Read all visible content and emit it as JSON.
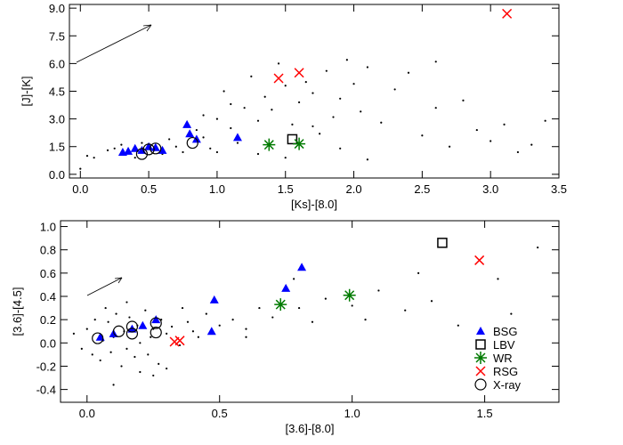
{
  "chart_data": [
    {
      "type": "scatter",
      "xlabel": "[Ks]-[8.0]",
      "ylabel": "[J]-[K]",
      "xlim": [
        -0.08,
        3.5
      ],
      "ylim": [
        -0.2,
        9.2
      ],
      "xticks": [
        {
          "value": 0,
          "label": "0.0"
        },
        0.5,
        {
          "value": 1,
          "label": "1.0"
        },
        1.5,
        {
          "value": 2,
          "label": "2.0"
        },
        2.5,
        {
          "value": 3,
          "label": "3.0"
        },
        3.5
      ],
      "yticks": [
        {
          "value": 0,
          "label": "0.0"
        },
        1.5,
        {
          "value": 3,
          "label": "3.0"
        },
        4.5,
        {
          "value": 6,
          "label": "6.0"
        },
        7.5,
        {
          "value": 9,
          "label": "9.0"
        }
      ],
      "field": {
        "color": "#000000",
        "x": [
          0.0,
          0.05,
          0.1,
          0.2,
          0.25,
          0.3,
          0.4,
          0.45,
          0.6,
          0.65,
          0.7,
          0.75,
          0.85,
          0.9,
          0.95,
          1.0,
          1.05,
          1.1,
          1.2,
          1.25,
          1.3,
          1.35,
          1.4,
          1.45,
          1.5,
          1.55,
          1.6,
          1.65,
          1.7,
          1.75,
          1.8,
          1.85,
          1.9,
          1.95,
          2.0,
          2.05,
          2.1,
          2.2,
          2.3,
          2.4,
          2.5,
          2.6,
          2.7,
          2.8,
          2.9,
          3.0,
          3.1,
          3.2,
          3.3,
          3.4,
          1.15,
          1.3,
          1.5,
          1.7,
          1.9,
          2.1,
          0.9,
          1.1,
          2.6,
          1.0
        ],
        "y": [
          0.3,
          1.0,
          0.9,
          1.3,
          1.4,
          1.6,
          0.9,
          1.7,
          1.1,
          1.9,
          1.5,
          1.2,
          2.4,
          3.2,
          1.4,
          3.0,
          4.5,
          2.5,
          3.6,
          5.3,
          2.9,
          4.2,
          3.5,
          6.0,
          4.8,
          2.7,
          3.9,
          5.0,
          4.4,
          2.2,
          5.6,
          3.1,
          4.1,
          6.2,
          4.9,
          3.4,
          5.8,
          2.8,
          4.6,
          5.5,
          2.1,
          3.6,
          1.5,
          4.0,
          2.4,
          1.8,
          2.7,
          1.2,
          1.6,
          2.9,
          1.7,
          1.1,
          0.9,
          2.6,
          1.4,
          0.8,
          2.0,
          3.8,
          6.1,
          1.2
        ]
      },
      "series": [
        {
          "name": "BSG",
          "marker": "triangle",
          "color": "#0000ff",
          "x": [
            0.31,
            0.35,
            0.4,
            0.45,
            0.5,
            0.55,
            0.6,
            0.78,
            0.8,
            0.85,
            1.15
          ],
          "y": [
            1.2,
            1.25,
            1.4,
            1.3,
            1.5,
            1.45,
            1.3,
            2.7,
            2.2,
            1.9,
            2.0
          ]
        },
        {
          "name": "LBV",
          "marker": "square",
          "color": "#000000",
          "x": [
            1.55
          ],
          "y": [
            1.9
          ]
        },
        {
          "name": "WR",
          "marker": "asterisk",
          "color": "#007a00",
          "x": [
            1.38,
            1.6
          ],
          "y": [
            1.6,
            1.65
          ]
        },
        {
          "name": "RSG",
          "marker": "x",
          "color": "#ff0000",
          "x": [
            1.45,
            1.6,
            3.12
          ],
          "y": [
            5.2,
            5.5,
            8.7
          ]
        },
        {
          "name": "X-ray",
          "marker": "circle",
          "color": "#000000",
          "x": [
            0.45,
            0.5,
            0.55,
            0.82
          ],
          "y": [
            1.1,
            1.35,
            1.4,
            1.7
          ]
        }
      ]
    },
    {
      "type": "scatter",
      "xlabel": "[3.6]-[8.0]",
      "ylabel": "[3.6]-[4.5]",
      "xlim": [
        -0.1,
        1.78
      ],
      "ylim": [
        -0.51,
        1.05
      ],
      "xticks": [
        {
          "value": 0,
          "label": "0.0"
        },
        0.5,
        {
          "value": 1,
          "label": "1.0"
        },
        1.5
      ],
      "yticks": [
        -0.4,
        -0.2,
        {
          "value": 0,
          "label": "0.0"
        },
        0.2,
        0.4,
        0.6,
        0.8,
        {
          "value": 1,
          "label": "1.0"
        }
      ],
      "legend": "lower right",
      "field": {
        "color": "#000000",
        "x": [
          -0.05,
          -0.02,
          0.0,
          0.02,
          0.03,
          0.05,
          0.06,
          0.08,
          0.09,
          0.1,
          0.11,
          0.13,
          0.14,
          0.15,
          0.16,
          0.18,
          0.19,
          0.2,
          0.22,
          0.23,
          0.24,
          0.25,
          0.27,
          0.28,
          0.3,
          0.32,
          0.35,
          0.38,
          0.4,
          0.42,
          0.45,
          0.5,
          0.55,
          0.6,
          0.65,
          0.7,
          0.8,
          0.85,
          0.9,
          1.0,
          1.05,
          1.1,
          1.2,
          1.3,
          1.4,
          1.55,
          1.6,
          1.7,
          0.1,
          0.2,
          0.3,
          0.07,
          0.15,
          0.25,
          0.36,
          0.6,
          0.78,
          1.25
        ],
        "y": [
          0.08,
          -0.05,
          0.12,
          -0.1,
          0.2,
          -0.15,
          0.02,
          0.18,
          -0.08,
          0.05,
          0.25,
          -0.2,
          0.1,
          -0.05,
          0.22,
          -0.12,
          0.15,
          0.0,
          0.28,
          -0.1,
          0.05,
          0.12,
          -0.18,
          0.2,
          0.08,
          0.14,
          -0.02,
          0.18,
          0.1,
          0.05,
          0.25,
          0.15,
          0.2,
          0.12,
          0.3,
          0.22,
          0.3,
          0.18,
          0.38,
          0.32,
          0.2,
          0.45,
          0.28,
          0.36,
          0.15,
          0.55,
          0.25,
          0.82,
          -0.36,
          -0.25,
          -0.22,
          0.3,
          0.35,
          -0.28,
          0.3,
          0.05,
          0.55,
          0.6
        ]
      },
      "series": [
        {
          "name": "BSG",
          "marker": "triangle",
          "color": "#0000ff",
          "x": [
            0.05,
            0.1,
            0.17,
            0.21,
            0.26,
            0.48,
            0.47,
            0.75,
            0.81
          ],
          "y": [
            0.05,
            0.08,
            0.12,
            0.15,
            0.2,
            0.37,
            0.1,
            0.47,
            0.65
          ]
        },
        {
          "name": "LBV",
          "marker": "square",
          "color": "#000000",
          "x": [
            1.34
          ],
          "y": [
            0.86
          ]
        },
        {
          "name": "WR",
          "marker": "asterisk",
          "color": "#007a00",
          "x": [
            0.73,
            0.99
          ],
          "y": [
            0.33,
            0.41
          ]
        },
        {
          "name": "RSG",
          "marker": "x",
          "color": "#ff0000",
          "x": [
            0.33,
            0.35,
            1.48
          ],
          "y": [
            0.01,
            0.02,
            0.71
          ]
        },
        {
          "name": "X-ray",
          "marker": "circle",
          "color": "#000000",
          "x": [
            0.04,
            0.12,
            0.17,
            0.17,
            0.26,
            0.26
          ],
          "y": [
            0.04,
            0.1,
            0.14,
            0.08,
            0.17,
            0.09
          ]
        }
      ]
    }
  ]
}
